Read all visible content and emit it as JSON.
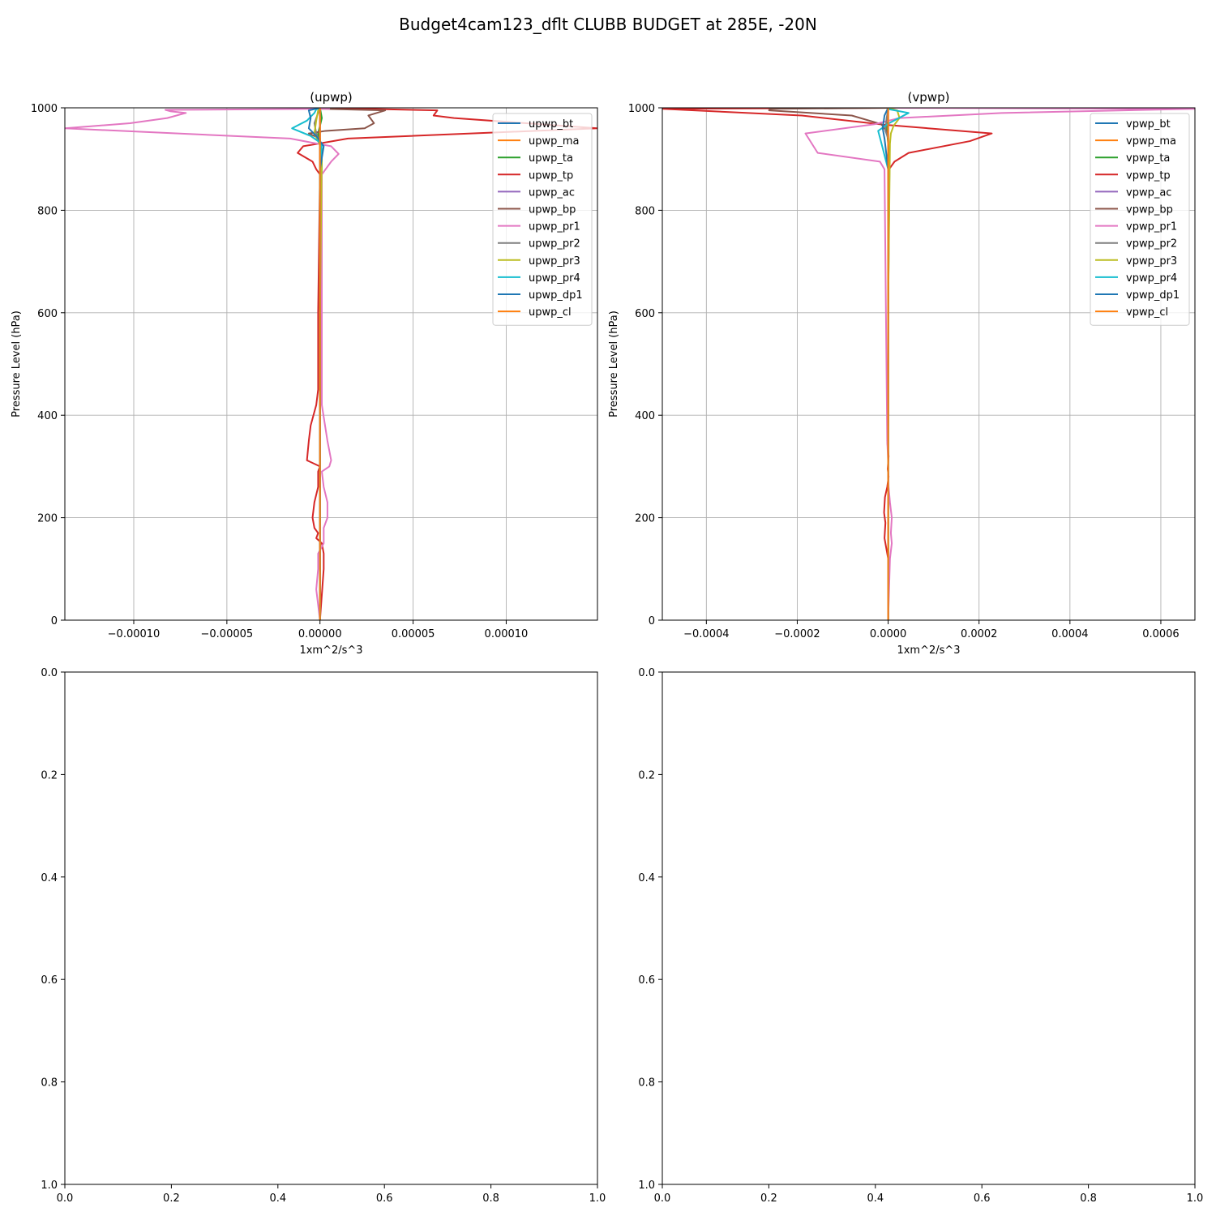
{
  "figure": {
    "suptitle": "Budget4cam123_dflt CLUBB BUDGET at 285E, -20N"
  },
  "chart_data": [
    {
      "type": "line",
      "title": "(upwp)",
      "xlabel": "1xm^2/s^3",
      "ylabel": "Pressure Level (hPa)",
      "xlim": [
        -0.000137,
        0.000149
      ],
      "ylim": [
        1000,
        0
      ],
      "x_ticks": [
        -0.0001,
        -5e-05,
        0.0,
        5e-05,
        0.0001
      ],
      "x_tick_labels": [
        "−0.00010",
        "−0.00005",
        "0.00000",
        "0.00005",
        "0.00010"
      ],
      "y_ticks": [
        0,
        200,
        400,
        600,
        800,
        1000
      ],
      "y_tick_labels": [
        "0",
        "200",
        "400",
        "600",
        "800",
        "1000"
      ],
      "grid": true,
      "legend_position": "upper-right",
      "series": [
        {
          "name": "upwp_bt",
          "color": "#1f77b4",
          "x": [
            0,
            0,
            0,
            0,
            0
          ],
          "y": [
            0,
            300,
            600,
            900,
            1000
          ]
        },
        {
          "name": "upwp_ma",
          "color": "#ff7f0e",
          "x": [
            0,
            0,
            0,
            0,
            0
          ],
          "y": [
            0,
            300,
            600,
            900,
            1000
          ]
        },
        {
          "name": "upwp_ta",
          "color": "#2ca02c",
          "x": [
            0,
            0,
            0,
            1e-06,
            -1e-06,
            1e-06,
            0
          ],
          "y": [
            0,
            300,
            600,
            900,
            950,
            980,
            1000
          ]
        },
        {
          "name": "upwp_tp",
          "color": "#d62728",
          "x": [
            0,
            1e-06,
            2e-06,
            2e-06,
            1e-06,
            -2e-06,
            -1e-06,
            -3e-06,
            -4e-06,
            -3e-06,
            -1e-06,
            -1e-06,
            0,
            -7e-06,
            -6e-06,
            -5e-06,
            -2e-06,
            -1e-06,
            -1e-06,
            0,
            -2e-06,
            -4e-06,
            -1.2e-05,
            -9e-06,
            1.5e-05,
            0.000149,
            7.2e-05,
            6.1e-05,
            6.3e-05,
            0.0
          ],
          "y": [
            0,
            50,
            100,
            130,
            150,
            160,
            170,
            180,
            200,
            230,
            260,
            290,
            300,
            312,
            350,
            380,
            420,
            450,
            600,
            870,
            880,
            895,
            912,
            925,
            940,
            960,
            980,
            985,
            995,
            1000
          ]
        },
        {
          "name": "upwp_ac",
          "color": "#9467bd",
          "x": [
            0,
            0,
            0,
            0,
            0
          ],
          "y": [
            0,
            300,
            600,
            900,
            1000
          ]
        },
        {
          "name": "upwp_bp",
          "color": "#8c564b",
          "x": [
            0,
            0,
            0,
            0,
            -6e-06,
            3e-06,
            2.4e-05,
            2.9e-05,
            2.6e-05,
            3.5e-05,
            1e-06,
            0
          ],
          "y": [
            0,
            600,
            900,
            940,
            950,
            955,
            960,
            970,
            985,
            995,
            998,
            1000
          ]
        },
        {
          "name": "upwp_pr1",
          "color": "#e377c2",
          "x": [
            0,
            -2e-06,
            -1e-06,
            -1e-06,
            2e-06,
            2e-06,
            4e-06,
            4e-06,
            2e-06,
            1e-06,
            5e-06,
            6e-06,
            4e-06,
            1e-06,
            1e-06,
            3e-06,
            6e-06,
            1e-05,
            6e-06,
            -1.6e-05,
            -0.000137,
            -0.000102,
            -8.2e-05,
            -7.2e-05,
            -8e-05,
            -8.3e-05,
            5e-06,
            0
          ],
          "y": [
            0,
            60,
            100,
            130,
            150,
            180,
            200,
            230,
            260,
            290,
            300,
            312,
            350,
            420,
            870,
            880,
            895,
            910,
            925,
            940,
            960,
            970,
            980,
            990,
            993,
            996,
            998,
            1000
          ]
        },
        {
          "name": "upwp_pr2",
          "color": "#7f7f7f",
          "x": [
            0,
            0,
            0,
            -2e-06,
            -3e-06,
            -1e-06,
            0
          ],
          "y": [
            0,
            600,
            930,
            950,
            970,
            990,
            1000
          ]
        },
        {
          "name": "upwp_pr3",
          "color": "#bcbd22",
          "x": [
            0,
            0,
            1e-06,
            -3e-06,
            -2e-06,
            -1e-06,
            0
          ],
          "y": [
            0,
            600,
            920,
            950,
            975,
            995,
            1000
          ]
        },
        {
          "name": "upwp_pr4",
          "color": "#17becf",
          "x": [
            0,
            0,
            1e-06,
            -5e-06,
            -1.5e-05,
            -7e-06,
            -3e-06,
            -2e-06,
            0
          ],
          "y": [
            0,
            880,
            930,
            945,
            960,
            975,
            990,
            997,
            1000
          ]
        },
        {
          "name": "upwp_dp1",
          "color": "#1f77b4",
          "x": [
            0,
            0,
            2e-06,
            -2e-06,
            -6e-06,
            -5e-06,
            -6e-06,
            0
          ],
          "y": [
            0,
            880,
            925,
            945,
            960,
            980,
            995,
            1000
          ]
        },
        {
          "name": "upwp_cl",
          "color": "#ff7f0e",
          "x": [
            0,
            0,
            0,
            0,
            0
          ],
          "y": [
            0,
            300,
            600,
            900,
            1000
          ]
        }
      ]
    },
    {
      "type": "line",
      "title": "(vpwp)",
      "xlabel": "1xm^2/s^3",
      "ylabel": "Pressure Level (hPa)",
      "xlim": [
        -0.0004969,
        0.000675
      ],
      "ylim": [
        1000,
        0
      ],
      "x_ticks": [
        -0.0004,
        -0.0002,
        0.0,
        0.0002,
        0.0004,
        0.0006
      ],
      "x_tick_labels": [
        "−0.0004",
        "−0.0002",
        "0.0000",
        "0.0002",
        "0.0004",
        "0.0006"
      ],
      "y_ticks": [
        0,
        200,
        400,
        600,
        800,
        1000
      ],
      "y_tick_labels": [
        "0",
        "200",
        "400",
        "600",
        "800",
        "1000"
      ],
      "grid": true,
      "legend_position": "upper-right",
      "series": [
        {
          "name": "vpwp_bt",
          "color": "#1f77b4",
          "x": [
            0,
            0,
            0,
            0,
            0
          ],
          "y": [
            0,
            300,
            600,
            900,
            1000
          ]
        },
        {
          "name": "vpwp_ma",
          "color": "#ff7f0e",
          "x": [
            0,
            0,
            0,
            0,
            0
          ],
          "y": [
            0,
            300,
            600,
            900,
            1000
          ]
        },
        {
          "name": "vpwp_ta",
          "color": "#2ca02c",
          "x": [
            0,
            0,
            0,
            3e-06,
            -3e-06,
            0
          ],
          "y": [
            0,
            300,
            600,
            900,
            960,
            1000
          ]
        },
        {
          "name": "vpwp_tp",
          "color": "#d62728",
          "x": [
            0,
            0,
            -2e-06,
            -8e-06,
            -6e-06,
            -9e-06,
            -7e-06,
            -2e-06,
            1e-06,
            -1e-06,
            1e-06,
            -2e-06,
            0,
            0,
            2e-06,
            1.4e-05,
            4.5e-05,
            0.00018,
            0.000228,
            -8e-06,
            -0.00019,
            -0.000497,
            0
          ],
          "y": [
            0,
            120,
            130,
            160,
            190,
            210,
            240,
            260,
            280,
            295,
            320,
            350,
            380,
            860,
            880,
            895,
            912,
            935,
            950,
            967,
            985,
            998,
            1000
          ]
        },
        {
          "name": "vpwp_ac",
          "color": "#9467bd",
          "x": [
            0,
            0,
            0,
            0,
            0
          ],
          "y": [
            0,
            300,
            600,
            900,
            1000
          ]
        },
        {
          "name": "vpwp_bp",
          "color": "#8c564b",
          "x": [
            0,
            0,
            0,
            -1.5e-05,
            -8e-05,
            -0.000262,
            -0.00026,
            0
          ],
          "y": [
            0,
            600,
            950,
            968,
            985,
            995,
            998,
            1000
          ]
        },
        {
          "name": "vpwp_pr1",
          "color": "#e377c2",
          "x": [
            0,
            4e-06,
            8e-06,
            6e-06,
            8e-06,
            4e-06,
            1e-06,
            0,
            0,
            -2e-06,
            -8e-06,
            -1.8e-05,
            -0.000155,
            -0.000182,
            -3e-05,
            2.5e-05,
            0.00025,
            0.000675,
            0
          ],
          "y": [
            0,
            120,
            150,
            170,
            200,
            230,
            260,
            290,
            310,
            350,
            880,
            895,
            912,
            950,
            968,
            980,
            990,
            998,
            1000
          ]
        },
        {
          "name": "vpwp_pr2",
          "color": "#7f7f7f",
          "x": [
            0,
            0,
            0,
            -6e-06,
            -4e-06,
            0
          ],
          "y": [
            0,
            600,
            940,
            955,
            975,
            1000
          ]
        },
        {
          "name": "vpwp_pr3",
          "color": "#bcbd22",
          "x": [
            0,
            0,
            4e-06,
            6e-06,
            1.2e-05,
            2.5e-05,
            2e-05,
            0
          ],
          "y": [
            0,
            600,
            930,
            950,
            965,
            980,
            995,
            1000
          ]
        },
        {
          "name": "vpwp_pr4",
          "color": "#17becf",
          "x": [
            0,
            0,
            -1.6e-05,
            -2.2e-05,
            2e-06,
            4.5e-05,
            3e-06,
            0
          ],
          "y": [
            0,
            880,
            935,
            955,
            970,
            990,
            997,
            1000
          ]
        },
        {
          "name": "vpwp_dp1",
          "color": "#1f77b4",
          "x": [
            0,
            0,
            -8e-06,
            -1.2e-05,
            -8e-06,
            0
          ],
          "y": [
            0,
            880,
            940,
            960,
            985,
            1000
          ]
        },
        {
          "name": "vpwp_cl",
          "color": "#ff7f0e",
          "x": [
            0,
            0,
            0,
            0,
            0
          ],
          "y": [
            0,
            300,
            600,
            900,
            1000
          ]
        }
      ]
    },
    {
      "type": "line",
      "title": "",
      "xlim": [
        0,
        1
      ],
      "ylim": [
        0,
        1
      ],
      "x_ticks": [
        0,
        0.2,
        0.4,
        0.6,
        0.8,
        1.0
      ],
      "x_tick_labels": [
        "0.0",
        "0.2",
        "0.4",
        "0.6",
        "0.8",
        "1.0"
      ],
      "y_ticks": [
        0,
        0.2,
        0.4,
        0.6,
        0.8,
        1.0
      ],
      "y_tick_labels": [
        "0.0",
        "0.2",
        "0.4",
        "0.6",
        "0.8",
        "1.0"
      ],
      "grid": false,
      "series": []
    },
    {
      "type": "line",
      "title": "",
      "xlim": [
        0,
        1
      ],
      "ylim": [
        0,
        1
      ],
      "x_ticks": [
        0,
        0.2,
        0.4,
        0.6,
        0.8,
        1.0
      ],
      "x_tick_labels": [
        "0.0",
        "0.2",
        "0.4",
        "0.6",
        "0.8",
        "1.0"
      ],
      "y_ticks": [
        0,
        0.2,
        0.4,
        0.6,
        0.8,
        1.0
      ],
      "y_tick_labels": [
        "0.0",
        "0.2",
        "0.4",
        "0.6",
        "0.8",
        "1.0"
      ],
      "grid": false,
      "series": []
    }
  ]
}
